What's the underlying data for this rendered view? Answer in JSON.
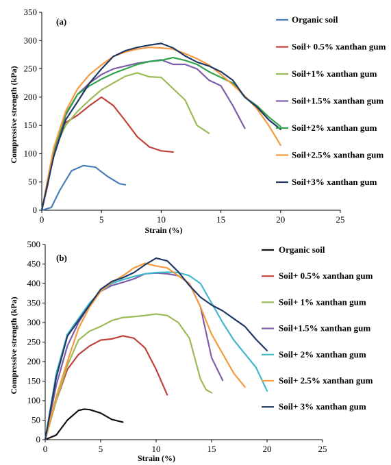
{
  "chart_data": [
    {
      "type": "line",
      "panel_label": "(a)",
      "xlabel": "Strain (%)",
      "ylabel": "Compressive strength (kPa)",
      "xlim": [
        0,
        25
      ],
      "ylim": [
        0,
        350
      ],
      "xticks": [
        0,
        5,
        10,
        15,
        20,
        25
      ],
      "yticks": [
        0,
        50,
        100,
        150,
        200,
        250,
        300,
        350
      ],
      "grid": false,
      "legend_position": "right",
      "series": [
        {
          "name": "Organic soil",
          "color": "#4a7eb8",
          "points": [
            [
              0,
              0
            ],
            [
              0.8,
              5
            ],
            [
              1.5,
              35
            ],
            [
              2.5,
              70
            ],
            [
              3.5,
              79
            ],
            [
              4.5,
              76
            ],
            [
              5.5,
              60
            ],
            [
              6.5,
              47
            ],
            [
              7,
              45
            ]
          ]
        },
        {
          "name": "Soil+ 0.5% xanthan gum",
          "color": "#c0413b",
          "points": [
            [
              0,
              0
            ],
            [
              0.5,
              45
            ],
            [
              1,
              100
            ],
            [
              1.5,
              140
            ],
            [
              2,
              155
            ],
            [
              3,
              168
            ],
            [
              4,
              185
            ],
            [
              5,
              200
            ],
            [
              6,
              185
            ],
            [
              7,
              158
            ],
            [
              8,
              130
            ],
            [
              9,
              112
            ],
            [
              10,
              105
            ],
            [
              11,
              103
            ]
          ]
        },
        {
          "name": "Soil+1% xanthan gum",
          "color": "#9bbb59",
          "points": [
            [
              0,
              0
            ],
            [
              0.5,
              50
            ],
            [
              1,
              105
            ],
            [
              2,
              150
            ],
            [
              3,
              175
            ],
            [
              4,
              195
            ],
            [
              5,
              213
            ],
            [
              6,
              225
            ],
            [
              7,
              237
            ],
            [
              8,
              243
            ],
            [
              9,
              236
            ],
            [
              10,
              235
            ],
            [
              11,
              215
            ],
            [
              12,
              195
            ],
            [
              13,
              150
            ],
            [
              14,
              136
            ]
          ]
        },
        {
          "name": "Soil+1.5% xanthan gum",
          "color": "#7d5ea8",
          "points": [
            [
              0,
              0
            ],
            [
              1,
              100
            ],
            [
              2,
              168
            ],
            [
              3,
              205
            ],
            [
              4,
              225
            ],
            [
              5,
              240
            ],
            [
              6,
              250
            ],
            [
              7,
              255
            ],
            [
              8,
              260
            ],
            [
              9,
              263
            ],
            [
              10,
              266
            ],
            [
              11,
              258
            ],
            [
              12,
              258
            ],
            [
              13,
              250
            ],
            [
              14,
              230
            ],
            [
              15,
              220
            ],
            [
              16,
              185
            ],
            [
              17,
              145
            ]
          ]
        },
        {
          "name": "Soil+2% xanthan gum",
          "color": "#2ea34a",
          "points": [
            [
              0,
              0
            ],
            [
              1,
              105
            ],
            [
              2,
              170
            ],
            [
              3,
              205
            ],
            [
              4,
              220
            ],
            [
              5,
              232
            ],
            [
              6,
              242
            ],
            [
              7,
              250
            ],
            [
              8,
              258
            ],
            [
              9,
              263
            ],
            [
              10,
              265
            ],
            [
              11,
              270
            ],
            [
              12,
              265
            ],
            [
              13,
              258
            ],
            [
              14,
              245
            ],
            [
              15,
              235
            ],
            [
              16,
              225
            ],
            [
              17,
              200
            ],
            [
              18,
              185
            ],
            [
              19,
              165
            ],
            [
              20,
              148
            ]
          ]
        },
        {
          "name": "Soil+2.5% xanthan gum",
          "color": "#f59a3e",
          "points": [
            [
              0,
              0
            ],
            [
              1,
              110
            ],
            [
              2,
              175
            ],
            [
              3,
              215
            ],
            [
              4,
              240
            ],
            [
              5,
              257
            ],
            [
              6,
              272
            ],
            [
              7,
              280
            ],
            [
              8,
              285
            ],
            [
              9,
              288
            ],
            [
              10,
              287
            ],
            [
              11,
              285
            ],
            [
              12,
              277
            ],
            [
              13,
              268
            ],
            [
              14,
              257
            ],
            [
              15,
              240
            ],
            [
              16,
              222
            ],
            [
              17,
              202
            ],
            [
              18,
              180
            ],
            [
              19,
              150
            ],
            [
              20,
              115
            ]
          ]
        },
        {
          "name": "Soil+3% xanthan gum",
          "color": "#1f3864",
          "points": [
            [
              0,
              0
            ],
            [
              1,
              95
            ],
            [
              2,
              160
            ],
            [
              3,
              192
            ],
            [
              4,
              225
            ],
            [
              5,
              250
            ],
            [
              6,
              272
            ],
            [
              7,
              282
            ],
            [
              8,
              288
            ],
            [
              9,
              292
            ],
            [
              10,
              295
            ],
            [
              11,
              287
            ],
            [
              12,
              273
            ],
            [
              13,
              262
            ],
            [
              14,
              255
            ],
            [
              15,
              245
            ],
            [
              16,
              230
            ],
            [
              17,
              200
            ],
            [
              18,
              183
            ],
            [
              19,
              160
            ],
            [
              20,
              143
            ]
          ]
        }
      ]
    },
    {
      "type": "line",
      "panel_label": "(b)",
      "xlabel": "Strain (%)",
      "ylabel": "Compressive strength (kPa)",
      "xlim": [
        0,
        25
      ],
      "ylim": [
        0,
        500
      ],
      "xticks": [
        0,
        5,
        10,
        15,
        20,
        25
      ],
      "yticks": [
        0,
        50,
        100,
        150,
        200,
        250,
        300,
        350,
        400,
        450,
        500
      ],
      "grid": false,
      "legend_position": "right",
      "series": [
        {
          "name": "Organic soil",
          "color": "#111111",
          "points": [
            [
              0,
              0
            ],
            [
              1,
              12
            ],
            [
              2,
              50
            ],
            [
              3,
              75
            ],
            [
              3.5,
              78
            ],
            [
              4,
              77
            ],
            [
              5,
              68
            ],
            [
              6,
              52
            ],
            [
              7,
              45
            ]
          ]
        },
        {
          "name": "Soil+ 0.5% xanthan gum",
          "color": "#c0413b",
          "points": [
            [
              0,
              0
            ],
            [
              1,
              100
            ],
            [
              2,
              180
            ],
            [
              3,
              218
            ],
            [
              4,
              240
            ],
            [
              5,
              255
            ],
            [
              6,
              258
            ],
            [
              7,
              266
            ],
            [
              8,
              260
            ],
            [
              9,
              235
            ],
            [
              10,
              180
            ],
            [
              11,
              115
            ]
          ]
        },
        {
          "name": "Soil+ 1% xanthan gum",
          "color": "#9bbb59",
          "points": [
            [
              0,
              0
            ],
            [
              1,
              100
            ],
            [
              2,
              190
            ],
            [
              3,
              255
            ],
            [
              4,
              278
            ],
            [
              5,
              290
            ],
            [
              6,
              305
            ],
            [
              7,
              313
            ],
            [
              8,
              315
            ],
            [
              9,
              318
            ],
            [
              10,
              322
            ],
            [
              11,
              318
            ],
            [
              12,
              300
            ],
            [
              13,
              260
            ],
            [
              14,
              155
            ],
            [
              14.5,
              128
            ],
            [
              15,
              120
            ]
          ]
        },
        {
          "name": "Soil+1.5% xanthan gum",
          "color": "#7d5ea8",
          "points": [
            [
              0,
              0
            ],
            [
              1,
              140
            ],
            [
              2,
              240
            ],
            [
              3,
              300
            ],
            [
              4,
              345
            ],
            [
              5,
              380
            ],
            [
              6,
              395
            ],
            [
              7,
              403
            ],
            [
              8,
              412
            ],
            [
              9,
              425
            ],
            [
              10,
              427
            ],
            [
              11,
              425
            ],
            [
              12,
              420
            ],
            [
              13,
              400
            ],
            [
              14,
              340
            ],
            [
              15,
              210
            ],
            [
              16,
              152
            ]
          ]
        },
        {
          "name": "Soil+ 2% xanthan gum",
          "color": "#3fb8cc",
          "points": [
            [
              0,
              0
            ],
            [
              1,
              170
            ],
            [
              2,
              270
            ],
            [
              3,
              310
            ],
            [
              4,
              350
            ],
            [
              5,
              380
            ],
            [
              6,
              400
            ],
            [
              7,
              410
            ],
            [
              8,
              418
            ],
            [
              9,
              425
            ],
            [
              10,
              428
            ],
            [
              11,
              429
            ],
            [
              12,
              428
            ],
            [
              13,
              420
            ],
            [
              14,
              400
            ],
            [
              15,
              350
            ],
            [
              16,
              300
            ],
            [
              17,
              255
            ],
            [
              18,
              220
            ],
            [
              19,
              185
            ],
            [
              20,
              125
            ]
          ]
        },
        {
          "name": "Soil+ 2.5% xanthan gum",
          "color": "#f59a3e",
          "points": [
            [
              0,
              0
            ],
            [
              1,
              110
            ],
            [
              2,
              200
            ],
            [
              3,
              285
            ],
            [
              4,
              340
            ],
            [
              5,
              380
            ],
            [
              6,
              403
            ],
            [
              7,
              420
            ],
            [
              8,
              440
            ],
            [
              9,
              452
            ],
            [
              10,
              445
            ],
            [
              11,
              440
            ],
            [
              12,
              420
            ],
            [
              13,
              400
            ],
            [
              14,
              340
            ],
            [
              15,
              270
            ],
            [
              16,
              220
            ],
            [
              17,
              170
            ],
            [
              18,
              135
            ]
          ]
        },
        {
          "name": "Soil+ 3% xanthan gum",
          "color": "#1f3864",
          "points": [
            [
              0,
              0
            ],
            [
              1,
              160
            ],
            [
              2,
              265
            ],
            [
              3,
              305
            ],
            [
              4,
              345
            ],
            [
              5,
              385
            ],
            [
              6,
              405
            ],
            [
              7,
              415
            ],
            [
              8,
              428
            ],
            [
              9,
              448
            ],
            [
              10,
              465
            ],
            [
              11,
              458
            ],
            [
              12,
              430
            ],
            [
              13,
              395
            ],
            [
              14,
              365
            ],
            [
              15,
              345
            ],
            [
              16,
              330
            ],
            [
              17,
              310
            ],
            [
              18,
              290
            ],
            [
              19,
              257
            ],
            [
              20,
              228
            ]
          ]
        }
      ]
    }
  ]
}
